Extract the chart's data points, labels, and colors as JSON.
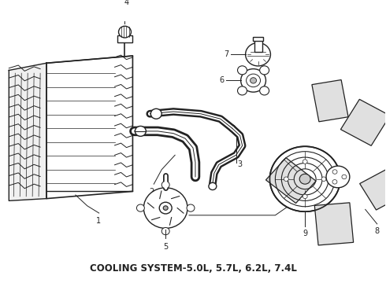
{
  "title": "COOLING SYSTEM-5.0L, 5.7L, 6.2L, 7.4L",
  "bg_color": "#ffffff",
  "line_color": "#222222",
  "title_fontsize": 8.5,
  "fig_width": 4.9,
  "fig_height": 3.6,
  "dpi": 100
}
